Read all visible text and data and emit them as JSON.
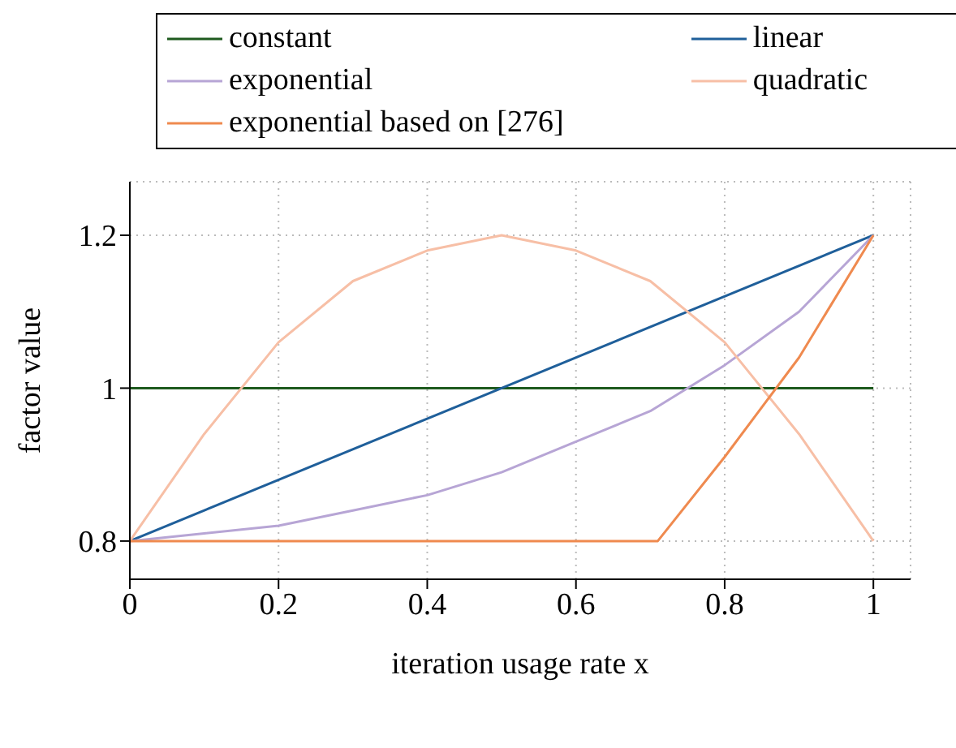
{
  "chart_data": {
    "type": "line",
    "xlabel": "iteration usage rate x",
    "ylabel": "factor value",
    "xlim": [
      0,
      1.05
    ],
    "ylim": [
      0.75,
      1.27
    ],
    "xticks": [
      0,
      0.2,
      0.4,
      0.6,
      0.8,
      1
    ],
    "yticks": [
      0.8,
      1,
      1.2
    ],
    "grid": true,
    "legend": "top",
    "marker": "none",
    "line_style": "solid",
    "series": [
      {
        "name": "constant",
        "color": "#1e5a1e",
        "x": [
          0,
          1
        ],
        "values": [
          1,
          1
        ]
      },
      {
        "name": "linear",
        "color": "#1f5f9a",
        "x": [
          0,
          1
        ],
        "values": [
          0.8,
          1.2
        ]
      },
      {
        "name": "exponential",
        "color": "#b7a5d5",
        "x": [
          0,
          0.1,
          0.2,
          0.3,
          0.4,
          0.5,
          0.6,
          0.7,
          0.8,
          0.9,
          1
        ],
        "values": [
          0.8,
          0.81,
          0.82,
          0.84,
          0.86,
          0.89,
          0.93,
          0.97,
          1.03,
          1.1,
          1.2
        ]
      },
      {
        "name": "quadratic",
        "color": "#f7bfa6",
        "x": [
          0,
          0.1,
          0.2,
          0.3,
          0.4,
          0.5,
          0.6,
          0.7,
          0.8,
          0.9,
          1
        ],
        "values": [
          0.8,
          0.94,
          1.06,
          1.14,
          1.18,
          1.2,
          1.18,
          1.14,
          1.06,
          0.94,
          0.8
        ]
      },
      {
        "name": "exponential based on [276]",
        "color": "#ef8a4f",
        "x": [
          0,
          0.71,
          0.8,
          0.9,
          1
        ],
        "values": [
          0.8,
          0.8,
          0.91,
          1.04,
          1.2
        ]
      }
    ]
  }
}
